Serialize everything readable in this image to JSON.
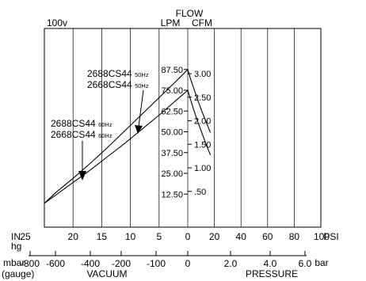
{
  "chart_data": {
    "type": "line",
    "title": "FLOW",
    "corner_label": "100v",
    "left_axis_label": "LPM",
    "right_axis_label": "CFM",
    "lpm_ticks": [
      "87.50",
      "75.00",
      "62.50",
      "50.00",
      "37.50",
      "25.00",
      "12.50"
    ],
    "cfm_ticks": [
      "3.00",
      "2.50",
      "2.00",
      "1.50",
      "1.00",
      ".50"
    ],
    "lpm_range": [
      0,
      100
    ],
    "vacuum_axis": {
      "unit_label": [
        "IN.",
        "hg"
      ],
      "ticks": [
        "25",
        "20",
        "15",
        "10",
        "5",
        "0"
      ],
      "range": [
        0,
        25
      ]
    },
    "pressure_axis": {
      "unit_label": "PSI",
      "ticks": [
        "20",
        "40",
        "60",
        "80",
        "100"
      ],
      "range": [
        0,
        100
      ]
    },
    "mbar_axis": {
      "unit_label": [
        "mbar",
        "(gauge)"
      ],
      "ticks": [
        "-800",
        "-600",
        "-400",
        "-200",
        "-100",
        "0"
      ],
      "section_label": "VACUUM"
    },
    "bar_axis": {
      "unit_label": "bar",
      "ticks": [
        "2.0",
        "4.0",
        "6.0"
      ],
      "section_label": "PRESSURE"
    },
    "legend_groups": [
      {
        "models": [
          "2688CS44",
          "2668CS44"
        ],
        "freq": "50Hz"
      },
      {
        "models": [
          "2688CS44",
          "2668CS44"
        ],
        "freq": "60Hz"
      }
    ],
    "series": [
      {
        "name": "2688CS44 60Hz",
        "vacuum": {
          "x": [
            0,
            2,
            5,
            8,
            11,
            14,
            17,
            20,
            23,
            25
          ],
          "y": [
            87.5,
            80.5,
            70.5,
            60.5,
            50.5,
            40.5,
            31.0,
            22.0,
            13.5,
            7.0
          ]
        },
        "pressure": {
          "x": [
            0,
            2,
            5,
            8,
            11,
            14,
            17
          ],
          "y": [
            87.5,
            82.0,
            75.0,
            68.0,
            61.5,
            55.5,
            49.5
          ]
        }
      },
      {
        "name": "2668CS44 60Hz",
        "vacuum": {
          "x": [
            0,
            2,
            5,
            8,
            11,
            14,
            17,
            20,
            23,
            25
          ],
          "y": [
            75.0,
            69.0,
            60.0,
            51.5,
            43.0,
            35.0,
            27.0,
            19.5,
            12.0,
            7.0
          ]
        },
        "pressure": {
          "x": [
            0,
            2,
            5,
            8,
            11,
            14,
            17
          ],
          "y": [
            75.0,
            69.5,
            62.0,
            55.0,
            48.5,
            42.0,
            36.0
          ]
        }
      }
    ]
  }
}
